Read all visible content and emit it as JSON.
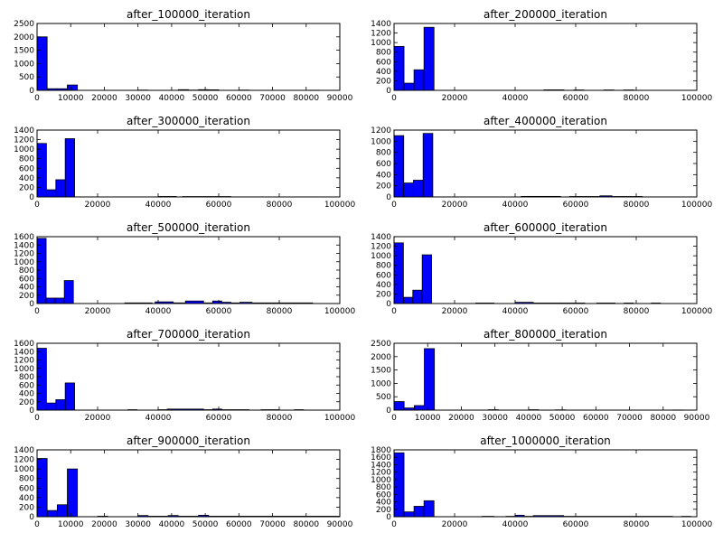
{
  "figure": {
    "background": "#ffffff",
    "bar_color": "#0000ff",
    "edge_color": "#000000"
  },
  "chart_data": [
    {
      "type": "bar",
      "title": "after_100000_iteration",
      "xlim": [
        0,
        90000
      ],
      "ylim": [
        0,
        2500
      ],
      "xticks": [
        0,
        10000,
        20000,
        30000,
        40000,
        50000,
        60000,
        70000,
        80000,
        90000
      ],
      "yticks": [
        0,
        500,
        1000,
        1500,
        2000,
        2500
      ],
      "bins": [
        {
          "x0": 0,
          "x1": 3000,
          "value": 2000
        },
        {
          "x0": 3000,
          "x1": 6000,
          "value": 60
        },
        {
          "x0": 6000,
          "x1": 9000,
          "value": 60
        },
        {
          "x0": 9000,
          "x1": 12000,
          "value": 200
        },
        {
          "x0": 30000,
          "x1": 33000,
          "value": 10
        },
        {
          "x0": 42000,
          "x1": 45000,
          "value": 25
        },
        {
          "x0": 45000,
          "x1": 48000,
          "value": 10
        },
        {
          "x0": 48000,
          "x1": 51000,
          "value": 25
        },
        {
          "x0": 51000,
          "x1": 54000,
          "value": 20
        },
        {
          "x0": 60000,
          "x1": 63000,
          "value": 10
        },
        {
          "x0": 81000,
          "x1": 84000,
          "value": 5
        }
      ]
    },
    {
      "type": "bar",
      "title": "after_200000_iteration",
      "xlim": [
        0,
        100000
      ],
      "ylim": [
        0,
        1400
      ],
      "xticks": [
        0,
        20000,
        40000,
        60000,
        80000,
        100000
      ],
      "yticks": [
        0,
        200,
        400,
        600,
        800,
        1000,
        1200,
        1400
      ],
      "bins": [
        {
          "x0": 0,
          "x1": 3300,
          "value": 920
        },
        {
          "x0": 3300,
          "x1": 6600,
          "value": 150
        },
        {
          "x0": 6600,
          "x1": 9900,
          "value": 430
        },
        {
          "x0": 9900,
          "x1": 13200,
          "value": 1320
        },
        {
          "x0": 49500,
          "x1": 56100,
          "value": 10
        },
        {
          "x0": 59400,
          "x1": 62700,
          "value": 8
        },
        {
          "x0": 69300,
          "x1": 72600,
          "value": 8
        },
        {
          "x0": 75900,
          "x1": 79200,
          "value": 8
        }
      ]
    },
    {
      "type": "bar",
      "title": "after_300000_iteration",
      "xlim": [
        0,
        100000
      ],
      "ylim": [
        0,
        1400
      ],
      "xticks": [
        0,
        20000,
        40000,
        60000,
        80000,
        100000
      ],
      "yticks": [
        0,
        200,
        400,
        600,
        800,
        1000,
        1200,
        1400
      ],
      "bins": [
        {
          "x0": 0,
          "x1": 3100,
          "value": 1120
        },
        {
          "x0": 3100,
          "x1": 6200,
          "value": 150
        },
        {
          "x0": 6200,
          "x1": 9300,
          "value": 360
        },
        {
          "x0": 9300,
          "x1": 12400,
          "value": 1220
        },
        {
          "x0": 40000,
          "x1": 46000,
          "value": 10
        },
        {
          "x0": 48000,
          "x1": 64000,
          "value": 8
        }
      ]
    },
    {
      "type": "bar",
      "title": "after_400000_iteration",
      "xlim": [
        0,
        100000
      ],
      "ylim": [
        0,
        1200
      ],
      "xticks": [
        0,
        20000,
        40000,
        60000,
        80000,
        100000
      ],
      "yticks": [
        0,
        200,
        400,
        600,
        800,
        1000,
        1200
      ],
      "bins": [
        {
          "x0": 0,
          "x1": 3200,
          "value": 1100
        },
        {
          "x0": 3200,
          "x1": 6400,
          "value": 250
        },
        {
          "x0": 6400,
          "x1": 9600,
          "value": 300
        },
        {
          "x0": 9600,
          "x1": 12800,
          "value": 1140
        },
        {
          "x0": 42000,
          "x1": 55000,
          "value": 10
        },
        {
          "x0": 58000,
          "x1": 68000,
          "value": 8
        },
        {
          "x0": 68000,
          "x1": 72000,
          "value": 20
        },
        {
          "x0": 72000,
          "x1": 82000,
          "value": 8
        }
      ]
    },
    {
      "type": "bar",
      "title": "after_500000_iteration",
      "xlim": [
        0,
        100000
      ],
      "ylim": [
        0,
        1600
      ],
      "xticks": [
        0,
        20000,
        40000,
        60000,
        80000,
        100000
      ],
      "yticks": [
        0,
        200,
        400,
        600,
        800,
        1000,
        1200,
        1400,
        1600
      ],
      "bins": [
        {
          "x0": 0,
          "x1": 3000,
          "value": 1560
        },
        {
          "x0": 3000,
          "x1": 6000,
          "value": 130
        },
        {
          "x0": 6000,
          "x1": 9000,
          "value": 130
        },
        {
          "x0": 9000,
          "x1": 12000,
          "value": 550
        },
        {
          "x0": 29000,
          "x1": 38000,
          "value": 15
        },
        {
          "x0": 39000,
          "x1": 45000,
          "value": 40
        },
        {
          "x0": 45000,
          "x1": 49000,
          "value": 15
        },
        {
          "x0": 49000,
          "x1": 55000,
          "value": 60
        },
        {
          "x0": 55000,
          "x1": 58000,
          "value": 15
        },
        {
          "x0": 58000,
          "x1": 61000,
          "value": 60
        },
        {
          "x0": 61000,
          "x1": 64000,
          "value": 30
        },
        {
          "x0": 64000,
          "x1": 67000,
          "value": 15
        },
        {
          "x0": 67000,
          "x1": 71000,
          "value": 30
        },
        {
          "x0": 71000,
          "x1": 91000,
          "value": 15
        }
      ]
    },
    {
      "type": "bar",
      "title": "after_600000_iteration",
      "xlim": [
        0,
        100000
      ],
      "ylim": [
        0,
        1400
      ],
      "xticks": [
        0,
        20000,
        40000,
        60000,
        80000,
        100000
      ],
      "yticks": [
        0,
        200,
        400,
        600,
        800,
        1000,
        1200,
        1400
      ],
      "bins": [
        {
          "x0": 0,
          "x1": 3100,
          "value": 1270
        },
        {
          "x0": 3100,
          "x1": 6200,
          "value": 130
        },
        {
          "x0": 6200,
          "x1": 9300,
          "value": 280
        },
        {
          "x0": 9300,
          "x1": 12400,
          "value": 1020
        },
        {
          "x0": 27000,
          "x1": 33000,
          "value": 10
        },
        {
          "x0": 40000,
          "x1": 46000,
          "value": 25
        },
        {
          "x0": 46000,
          "x1": 55000,
          "value": 10
        },
        {
          "x0": 55000,
          "x1": 63000,
          "value": 10
        },
        {
          "x0": 67000,
          "x1": 73000,
          "value": 10
        },
        {
          "x0": 76000,
          "x1": 79000,
          "value": 10
        },
        {
          "x0": 85000,
          "x1": 88000,
          "value": 10
        }
      ]
    },
    {
      "type": "bar",
      "title": "after_700000_iteration",
      "xlim": [
        0,
        100000
      ],
      "ylim": [
        0,
        1600
      ],
      "xticks": [
        0,
        20000,
        40000,
        60000,
        80000,
        100000
      ],
      "yticks": [
        0,
        200,
        400,
        600,
        800,
        1000,
        1200,
        1400,
        1600
      ],
      "bins": [
        {
          "x0": 0,
          "x1": 3100,
          "value": 1480
        },
        {
          "x0": 3100,
          "x1": 6200,
          "value": 170
        },
        {
          "x0": 6200,
          "x1": 9300,
          "value": 250
        },
        {
          "x0": 9300,
          "x1": 12400,
          "value": 650
        },
        {
          "x0": 30000,
          "x1": 33000,
          "value": 10
        },
        {
          "x0": 40000,
          "x1": 43000,
          "value": 10
        },
        {
          "x0": 43000,
          "x1": 55000,
          "value": 25
        },
        {
          "x0": 55000,
          "x1": 58000,
          "value": 10
        },
        {
          "x0": 58000,
          "x1": 61000,
          "value": 25
        },
        {
          "x0": 61000,
          "x1": 70000,
          "value": 10
        },
        {
          "x0": 74000,
          "x1": 80000,
          "value": 10
        },
        {
          "x0": 85000,
          "x1": 88000,
          "value": 10
        }
      ]
    },
    {
      "type": "bar",
      "title": "after_800000_iteration",
      "xlim": [
        0,
        90000
      ],
      "ylim": [
        0,
        2500
      ],
      "xticks": [
        0,
        10000,
        20000,
        30000,
        40000,
        50000,
        60000,
        70000,
        80000,
        90000
      ],
      "yticks": [
        0,
        500,
        1000,
        1500,
        2000,
        2500
      ],
      "bins": [
        {
          "x0": 0,
          "x1": 3000,
          "value": 320
        },
        {
          "x0": 3000,
          "x1": 6000,
          "value": 80
        },
        {
          "x0": 6000,
          "x1": 9000,
          "value": 170
        },
        {
          "x0": 9000,
          "x1": 12000,
          "value": 2300
        },
        {
          "x0": 28000,
          "x1": 31000,
          "value": 15
        },
        {
          "x0": 40000,
          "x1": 43000,
          "value": 15
        },
        {
          "x0": 48000,
          "x1": 51000,
          "value": 10
        },
        {
          "x0": 83000,
          "x1": 86000,
          "value": 5
        }
      ]
    },
    {
      "type": "bar",
      "title": "after_900000_iteration",
      "xlim": [
        0,
        90000
      ],
      "ylim": [
        0,
        1400
      ],
      "xticks": [
        0,
        10000,
        20000,
        30000,
        40000,
        50000,
        60000,
        70000,
        80000,
        90000
      ],
      "yticks": [
        0,
        200,
        400,
        600,
        800,
        1000,
        1200,
        1400
      ],
      "bins": [
        {
          "x0": 0,
          "x1": 3000,
          "value": 1220
        },
        {
          "x0": 3000,
          "x1": 6000,
          "value": 130
        },
        {
          "x0": 6000,
          "x1": 9000,
          "value": 250
        },
        {
          "x0": 9000,
          "x1": 12000,
          "value": 1000
        },
        {
          "x0": 18000,
          "x1": 21000,
          "value": 10
        },
        {
          "x0": 30000,
          "x1": 33000,
          "value": 25
        },
        {
          "x0": 33000,
          "x1": 39000,
          "value": 10
        },
        {
          "x0": 39000,
          "x1": 42000,
          "value": 25
        },
        {
          "x0": 42000,
          "x1": 48000,
          "value": 10
        },
        {
          "x0": 48000,
          "x1": 51000,
          "value": 30
        },
        {
          "x0": 51000,
          "x1": 84000,
          "value": 10
        },
        {
          "x0": 84000,
          "x1": 90000,
          "value": 10
        }
      ]
    },
    {
      "type": "bar",
      "title": "after_1000000_iteration",
      "xlim": [
        0,
        100000
      ],
      "ylim": [
        0,
        1800
      ],
      "xticks": [
        0,
        20000,
        40000,
        60000,
        80000,
        100000
      ],
      "yticks": [
        0,
        200,
        400,
        600,
        800,
        1000,
        1200,
        1400,
        1600,
        1800
      ],
      "bins": [
        {
          "x0": 0,
          "x1": 3300,
          "value": 1720
        },
        {
          "x0": 3300,
          "x1": 6600,
          "value": 130
        },
        {
          "x0": 6600,
          "x1": 9900,
          "value": 280
        },
        {
          "x0": 9900,
          "x1": 13200,
          "value": 430
        },
        {
          "x0": 29000,
          "x1": 33000,
          "value": 10
        },
        {
          "x0": 37000,
          "x1": 40000,
          "value": 10
        },
        {
          "x0": 40000,
          "x1": 43000,
          "value": 40
        },
        {
          "x0": 43000,
          "x1": 46000,
          "value": 10
        },
        {
          "x0": 46000,
          "x1": 56000,
          "value": 30
        },
        {
          "x0": 56000,
          "x1": 92000,
          "value": 10
        },
        {
          "x0": 95000,
          "x1": 98000,
          "value": 10
        }
      ]
    }
  ]
}
